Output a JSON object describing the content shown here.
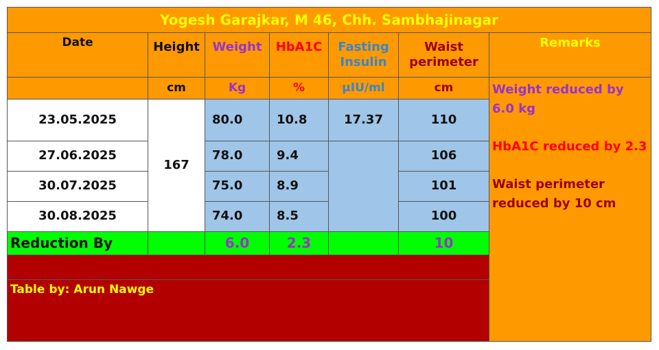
{
  "title": "Yogesh Garajkar, M 46, Chh. Sambhajinagar",
  "headers": {
    "date": "Date",
    "height": "Height",
    "weight": "Weight",
    "hba1c": "HbA1C",
    "fasting_l1": "Fasting",
    "fasting_l2": "Insulin",
    "waist_l1": "Waist",
    "waist_l2": "perimeter",
    "remarks": "Remarks"
  },
  "units": {
    "height": "cm",
    "weight": "Kg",
    "hba1c": "%",
    "fasting": "µIU/ml",
    "waist": "cm"
  },
  "height_value": "167",
  "rows": [
    {
      "date": "23.05.2025",
      "weight": "80.0",
      "hba1c": "10.8",
      "fasting": "17.37",
      "waist": "110"
    },
    {
      "date": "27.06.2025",
      "weight": "78.0",
      "hba1c": "9.4",
      "fasting": "",
      "waist": "106"
    },
    {
      "date": "30.07.2025",
      "weight": "75.0",
      "hba1c": "8.9",
      "fasting": "",
      "waist": "101"
    },
    {
      "date": "30.08.2025",
      "weight": "74.0",
      "hba1c": "8.5",
      "fasting": "",
      "waist": "100"
    }
  ],
  "reduction": {
    "label": "Reduction By",
    "weight": "6.0",
    "hba1c": "2.3",
    "waist": "10"
  },
  "remarks": {
    "weight": "Weight reduced by 6.0 kg",
    "hba1c": "HbA1C reduced by 2.3",
    "waist": "Waist perimeter reduced by 10 cm"
  },
  "credit": "Table by: Arun Nawge",
  "colors": {
    "orange": "#ff9900",
    "title_yellow": "#ffff00",
    "weight_purple": "#9933cc",
    "hba1c_red": "#ff0000",
    "insulin_blue": "#3d85c6",
    "waist_darkred": "#990000",
    "cell_blue": "#9fc5e8",
    "green": "#00ff00",
    "dark_red": "#b20000"
  }
}
